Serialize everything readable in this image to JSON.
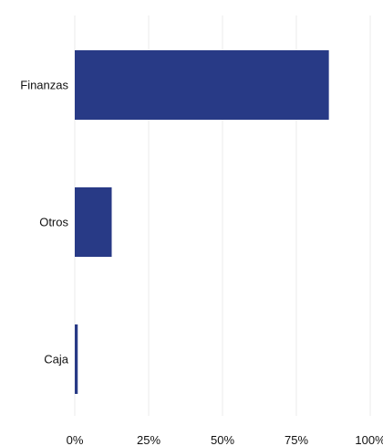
{
  "chart_data": {
    "type": "bar",
    "orientation": "horizontal",
    "categories": [
      "Finanzas",
      "Otros",
      "Caja"
    ],
    "values": [
      86,
      12.5,
      1
    ],
    "xlim": [
      0,
      100
    ],
    "x_ticks": [
      "0%",
      "25%",
      "50%",
      "75%",
      "100%"
    ],
    "grid": true,
    "legend": "none",
    "bar_color": "#283a86"
  }
}
